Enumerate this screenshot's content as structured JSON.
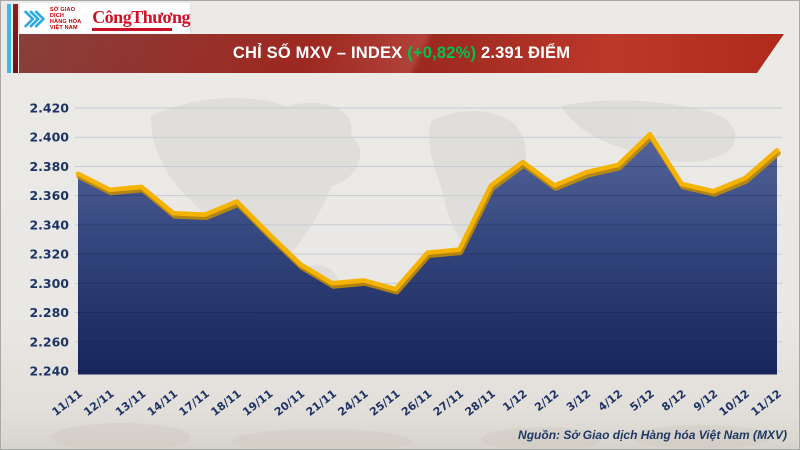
{
  "header": {
    "mxv_logo_lines": [
      "SỞ GIAO DỊCH",
      "HÀNG HÓA",
      "VIỆT NAM"
    ],
    "congthuong_text": "CôngThương"
  },
  "banner": {
    "title": "CHỈ SỐ MXV – INDEX",
    "change": "(+0,82%)",
    "points": "2.391 ĐIỂM"
  },
  "chart_data": {
    "type": "area",
    "title": "CHỈ SỐ MXV – INDEX (+0,82%) 2.391 ĐIỂM",
    "categories": [
      "11/11",
      "12/11",
      "13/11",
      "14/11",
      "17/11",
      "18/11",
      "19/11",
      "20/11",
      "21/11",
      "24/11",
      "25/11",
      "26/11",
      "27/11",
      "28/11",
      "1/12",
      "2/12",
      "3/12",
      "4/12",
      "5/12",
      "8/12",
      "9/12",
      "10/12",
      "11/12"
    ],
    "values": [
      2.375,
      2.364,
      2.366,
      2.348,
      2.347,
      2.356,
      2.334,
      2.313,
      2.3,
      2.302,
      2.296,
      2.321,
      2.323,
      2.367,
      2.383,
      2.367,
      2.376,
      2.381,
      2.402,
      2.368,
      2.363,
      2.372,
      2.391
    ],
    "ylim": [
      2.24,
      2.42
    ],
    "yticks": [
      2.42,
      2.4,
      2.38,
      2.36,
      2.34,
      2.32,
      2.3,
      2.28,
      2.26,
      2.24
    ],
    "xlabel": "",
    "ylabel": "",
    "grid": true,
    "legend_position": "none",
    "line_color": "#f5b301",
    "line_shadow_color": "#c98f00",
    "area_top_color": "#55659a",
    "area_mid_color": "#33467d",
    "area_bottom_color": "#16255a",
    "axis_text_color": "#1e3464",
    "grid_color": "#c7cbd4"
  },
  "footer": {
    "source": "Nguồn: Sở Giao dịch Hàng hóa Việt Nam (MXV)"
  },
  "colors": {
    "banner_red_dark": "#76201c",
    "banner_red_bright": "#bc382a",
    "change_green": "#00c24e",
    "logo_cyan": "#29abe2",
    "logo_red": "#c00000",
    "masthead_red": "#ce1126"
  }
}
